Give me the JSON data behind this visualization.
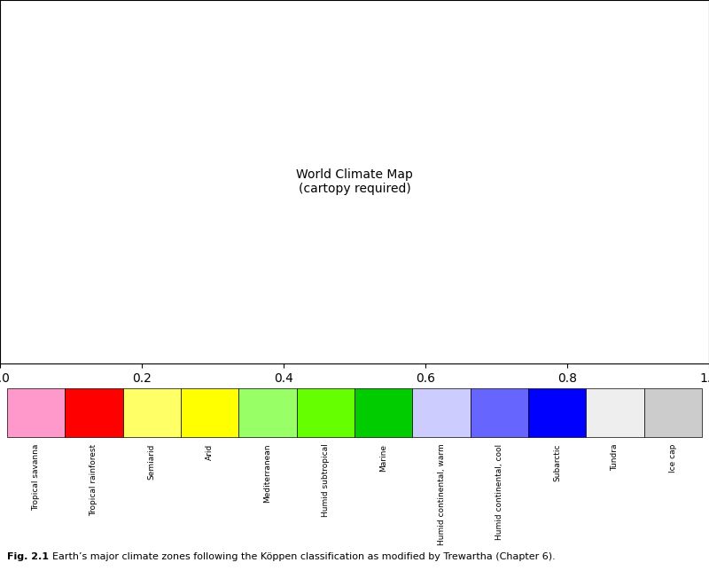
{
  "legend_items": [
    {
      "label": "Tropical savanna",
      "color": "#FF99CC"
    },
    {
      "label": "Tropical rainforest",
      "color": "#FF0000"
    },
    {
      "label": "Semiarid",
      "color": "#FFFF66"
    },
    {
      "label": "Arid",
      "color": "#FFFF00"
    },
    {
      "label": "Mediterranean",
      "color": "#99FF66"
    },
    {
      "label": "Humid subtropical",
      "color": "#66FF00"
    },
    {
      "label": "Marine",
      "color": "#00CC00"
    },
    {
      "label": "Humid continental, warm",
      "color": "#CCCCFF"
    },
    {
      "label": "Humid continental, cool",
      "color": "#6666FF"
    },
    {
      "label": "Subarctic",
      "color": "#0000FF"
    },
    {
      "label": "Tundra",
      "color": "#EEEEEE"
    },
    {
      "label": "Ice cap",
      "color": "#CCCCCC"
    }
  ],
  "caption_bold": "Fig. 2.1",
  "caption_text": "  Earth’s major climate zones following the Köppen classification as modified by Trewartha (Chapter 6).",
  "caption_bg": "#C8D8E8",
  "map_bg": "#FAFAFA",
  "ocean_color": "#FFFFFF",
  "land_base_color": "#DDDDDD",
  "grid_color": "#888888",
  "border_color": "#000000",
  "fig_width": 8.0,
  "fig_height": 6.61,
  "dpi": 100
}
